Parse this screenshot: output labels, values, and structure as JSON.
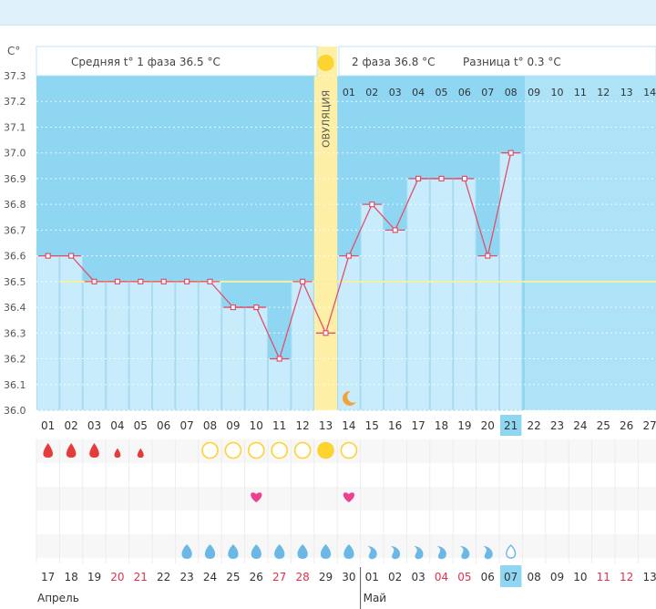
{
  "y_axis": {
    "unit_label": "C°",
    "ticks": [
      "37.3",
      "37.2",
      "37.1",
      "37.0",
      "36.9",
      "36.8",
      "36.7",
      "36.6",
      "36.5",
      "36.4",
      "36.3",
      "36.2",
      "36.1",
      "36.0"
    ]
  },
  "info": {
    "phase1_avg": "Средняя t° 1 фаза 36.5 °C",
    "phase2_avg": "2 фаза 36.8 °C",
    "difference": "Разница t° 0.3 °C",
    "ovulation_label": "ОВУЛЯЦИЯ"
  },
  "top_day_numbers": [
    "01",
    "02",
    "03",
    "04",
    "05",
    "06",
    "07",
    "08",
    "09",
    "10",
    "11",
    "12",
    "13",
    "14"
  ],
  "cycle_days": [
    "01",
    "02",
    "03",
    "04",
    "05",
    "06",
    "07",
    "08",
    "09",
    "10",
    "11",
    "12",
    "13",
    "14",
    "15",
    "16",
    "17",
    "18",
    "19",
    "20",
    "21",
    "22",
    "23",
    "24",
    "25",
    "26",
    "27"
  ],
  "current_cycle_day": "21",
  "calendar_days": [
    {
      "d": "17",
      "weekend": false
    },
    {
      "d": "18",
      "weekend": false
    },
    {
      "d": "19",
      "weekend": false
    },
    {
      "d": "20",
      "weekend": true
    },
    {
      "d": "21",
      "weekend": true
    },
    {
      "d": "22",
      "weekend": false
    },
    {
      "d": "23",
      "weekend": false
    },
    {
      "d": "24",
      "weekend": false
    },
    {
      "d": "25",
      "weekend": false
    },
    {
      "d": "26",
      "weekend": false
    },
    {
      "d": "27",
      "weekend": true
    },
    {
      "d": "28",
      "weekend": true
    },
    {
      "d": "29",
      "weekend": false
    },
    {
      "d": "30",
      "weekend": false
    },
    {
      "d": "01",
      "weekend": false
    },
    {
      "d": "02",
      "weekend": false
    },
    {
      "d": "03",
      "weekend": false
    },
    {
      "d": "04",
      "weekend": true
    },
    {
      "d": "05",
      "weekend": true
    },
    {
      "d": "06",
      "weekend": false
    },
    {
      "d": "07",
      "weekend": false
    },
    {
      "d": "08",
      "weekend": false
    },
    {
      "d": "09",
      "weekend": false
    },
    {
      "d": "10",
      "weekend": false
    },
    {
      "d": "11",
      "weekend": true
    },
    {
      "d": "12",
      "weekend": true
    },
    {
      "d": "13",
      "weekend": false
    }
  ],
  "current_calendar_day": "07",
  "months": [
    "Апрель",
    "Май"
  ],
  "colors": {
    "past_background": "#8fd6f2",
    "future_background": "#aee3f7",
    "bar_fill": "#c8ecfb",
    "line": "#e0506e",
    "ovulation_band": "#fdf0a6",
    "coverline": "#f3f0a4",
    "sun": "#fdd330",
    "blood": "#e63b3b",
    "mucus": "#6bb8e6",
    "heart": "#ef3f8f"
  },
  "markers": {
    "moon_day": 14,
    "sun_day": 13,
    "heart_days": [
      10,
      14
    ]
  },
  "symptom_rows": {
    "menstruation": [
      {
        "day": 1,
        "size": "large"
      },
      {
        "day": 2,
        "size": "large"
      },
      {
        "day": 3,
        "size": "large"
      },
      {
        "day": 4,
        "size": "small"
      },
      {
        "day": 5,
        "size": "small"
      }
    ],
    "ovulation_tests": [
      {
        "day": 8,
        "positive": false
      },
      {
        "day": 9,
        "positive": false
      },
      {
        "day": 10,
        "positive": false
      },
      {
        "day": 11,
        "positive": false
      },
      {
        "day": 12,
        "positive": false
      },
      {
        "day": 13,
        "positive": true
      },
      {
        "day": 14,
        "positive": false
      }
    ],
    "mucus": [
      {
        "day": 7,
        "kind": "drop"
      },
      {
        "day": 8,
        "kind": "drop"
      },
      {
        "day": 9,
        "kind": "drop"
      },
      {
        "day": 10,
        "kind": "drop"
      },
      {
        "day": 11,
        "kind": "drop"
      },
      {
        "day": 12,
        "kind": "drop"
      },
      {
        "day": 13,
        "kind": "drop"
      },
      {
        "day": 14,
        "kind": "drop"
      },
      {
        "day": 15,
        "kind": "curl"
      },
      {
        "day": 16,
        "kind": "curl"
      },
      {
        "day": 17,
        "kind": "curl"
      },
      {
        "day": 18,
        "kind": "curl"
      },
      {
        "day": 19,
        "kind": "curl"
      },
      {
        "day": 20,
        "kind": "curl"
      },
      {
        "day": 21,
        "kind": "outline"
      }
    ]
  },
  "chart_data": {
    "type": "line",
    "title": "",
    "xlabel": "",
    "ylabel": "C°",
    "ylim": [
      36.0,
      37.3
    ],
    "x": [
      1,
      2,
      3,
      4,
      5,
      6,
      7,
      8,
      9,
      10,
      11,
      12,
      13,
      14,
      15,
      16,
      17,
      18,
      19,
      20,
      21
    ],
    "series": [
      {
        "values": [
          36.6,
          36.6,
          36.5,
          36.5,
          36.5,
          36.5,
          36.5,
          36.5,
          36.4,
          36.4,
          36.2,
          36.5,
          36.3,
          36.6,
          36.8,
          36.7,
          36.9,
          36.9,
          36.9,
          36.6,
          37.0
        ]
      }
    ],
    "coverline": 36.5,
    "ovulation_day": 13,
    "grid": true
  }
}
